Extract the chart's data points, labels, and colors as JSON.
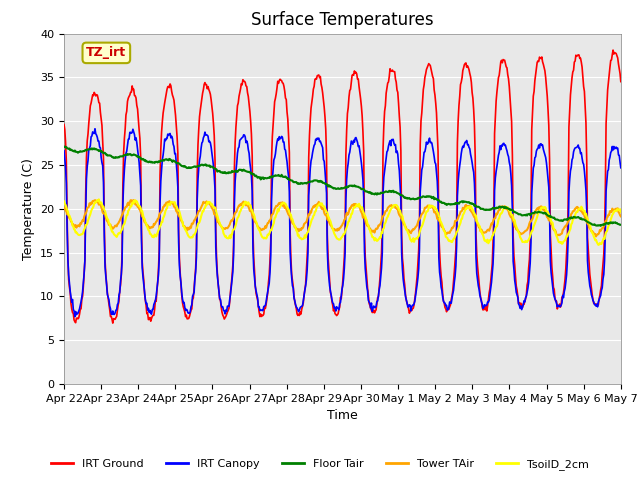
{
  "title": "Surface Temperatures",
  "xlabel": "Time",
  "ylabel": "Temperature (C)",
  "ylim": [
    0,
    40
  ],
  "total_days": 15,
  "xtick_labels": [
    "Apr 22",
    "Apr 23",
    "Apr 24",
    "Apr 25",
    "Apr 26",
    "Apr 27",
    "Apr 28",
    "Apr 29",
    "Apr 30",
    "May 1",
    "May 2",
    "May 3",
    "May 4",
    "May 5",
    "May 6",
    "May 7"
  ],
  "axes_bg": "#e8e8e8",
  "title_fontsize": 12,
  "label_fontsize": 9,
  "tick_fontsize": 8,
  "legend_entries": [
    "IRT Ground",
    "IRT Canopy",
    "Floor Tair",
    "Tower TAir",
    "TsoilD_2cm"
  ],
  "line_colors": [
    "red",
    "blue",
    "green",
    "orange",
    "yellow"
  ],
  "line_widths": [
    1.2,
    1.2,
    1.5,
    1.5,
    1.5
  ],
  "tz_label": "TZ_irt",
  "tz_bg": "#ffffcc",
  "tz_fg": "#cc0000",
  "tz_edge": "#aaaa00"
}
